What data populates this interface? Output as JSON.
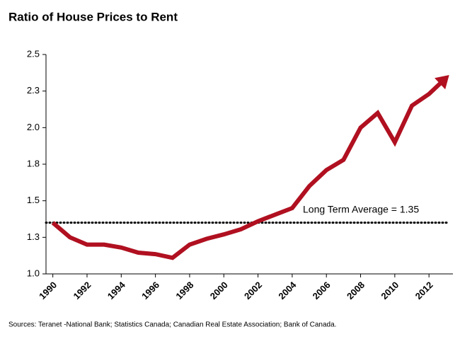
{
  "chart_data": {
    "type": "line",
    "title": "Ratio of House Prices to Rent",
    "x": [
      1990,
      1991,
      1992,
      1993,
      1994,
      1995,
      1996,
      1997,
      1998,
      1999,
      2000,
      2001,
      2002,
      2003,
      2004,
      2005,
      2006,
      2007,
      2008,
      2009,
      2010,
      2011,
      2012,
      2013
    ],
    "series": [
      {
        "color": "#b01020",
        "values": [
          1.35,
          1.25,
          1.2,
          1.2,
          1.18,
          1.145,
          1.135,
          1.11,
          1.2,
          1.24,
          1.27,
          1.305,
          1.36,
          1.405,
          1.45,
          1.6,
          1.71,
          1.78,
          2.0,
          2.1,
          1.9,
          2.15,
          2.23,
          2.34
        ]
      }
    ],
    "reference_line": {
      "value": 1.35,
      "label": "Long Term Average = 1.35"
    },
    "xlim": [
      1989.6,
      2013.4
    ],
    "xticks": [
      1990,
      1992,
      1994,
      1996,
      1998,
      2000,
      2002,
      2004,
      2006,
      2008,
      2010,
      2012
    ],
    "ylim": [
      1.0,
      2.5
    ],
    "yticks": [
      {
        "value": 1.0,
        "label": "1.0"
      },
      {
        "value": 1.25,
        "label": "1.3"
      },
      {
        "value": 1.5,
        "label": "1.5"
      },
      {
        "value": 1.75,
        "label": "1.8"
      },
      {
        "value": 2.0,
        "label": "2.0"
      },
      {
        "value": 2.25,
        "label": "2.3"
      },
      {
        "value": 2.5,
        "label": "2.5"
      }
    ],
    "source": "Sources: Teranet -National Bank; Statistics Canada;  Canadian Real Estate Association; Bank of Canada."
  }
}
